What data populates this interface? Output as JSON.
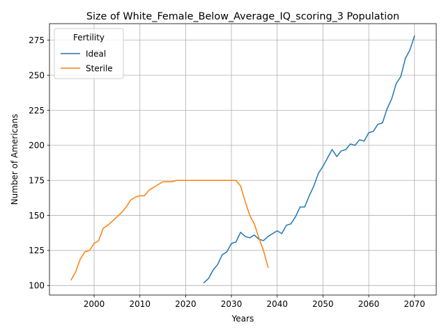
{
  "chart_data": {
    "type": "line",
    "title": "Size of White_Female_Below_Average_IQ_scoring_3 Population",
    "xlabel": "Years",
    "ylabel": "Number of Americans",
    "xlim": [
      1990.25,
      2074.75
    ],
    "ylim": [
      93.2,
      286.8
    ],
    "xticks": [
      2000,
      2010,
      2020,
      2030,
      2040,
      2050,
      2060,
      2070
    ],
    "yticks": [
      100,
      125,
      150,
      175,
      200,
      225,
      250,
      275
    ],
    "grid": true,
    "legend": {
      "title": "Fertility",
      "placement": "top-left"
    },
    "series": [
      {
        "name": "Ideal",
        "color": "#1f77b4",
        "x": [
          2024,
          2025,
          2026,
          2027,
          2028,
          2029,
          2030,
          2031,
          2032,
          2033,
          2034,
          2035,
          2036,
          2037,
          2038,
          2039,
          2040,
          2041,
          2042,
          2043,
          2044,
          2045,
          2046,
          2047,
          2048,
          2049,
          2050,
          2051,
          2052,
          2053,
          2054,
          2055,
          2056,
          2057,
          2058,
          2059,
          2060,
          2061,
          2062,
          2063,
          2064,
          2065,
          2066,
          2067,
          2068,
          2069,
          2070
        ],
        "y": [
          102,
          105,
          111,
          115,
          122,
          124,
          130,
          131,
          138,
          135,
          134,
          136,
          133,
          132,
          135,
          137,
          139,
          137,
          143,
          144,
          149,
          156,
          156,
          164,
          171,
          180,
          185,
          191,
          197,
          192,
          196,
          197,
          201,
          200,
          204,
          203,
          209,
          210,
          215,
          216,
          226,
          233,
          244,
          249,
          262,
          268,
          278
        ]
      },
      {
        "name": "Sterile",
        "color": "#ff7f0e",
        "x": [
          1995,
          1996,
          1997,
          1998,
          1999,
          2000,
          2001,
          2002,
          2003,
          2004,
          2005,
          2006,
          2007,
          2008,
          2009,
          2010,
          2011,
          2012,
          2013,
          2014,
          2015,
          2016,
          2017,
          2018,
          2019,
          2020,
          2021,
          2022,
          2023,
          2024,
          2025,
          2026,
          2027,
          2028,
          2029,
          2030,
          2031,
          2032,
          2033,
          2034,
          2035,
          2036,
          2037,
          2038
        ],
        "y": [
          104,
          110,
          119,
          124,
          125,
          130,
          132,
          141,
          143,
          146,
          149,
          152,
          156,
          161,
          163,
          164,
          164,
          168,
          170,
          172,
          174,
          174,
          174,
          175,
          175,
          175,
          175,
          175,
          175,
          175,
          175,
          175,
          175,
          175,
          175,
          175,
          175,
          171,
          160,
          150,
          144,
          134,
          125,
          113
        ]
      }
    ]
  }
}
